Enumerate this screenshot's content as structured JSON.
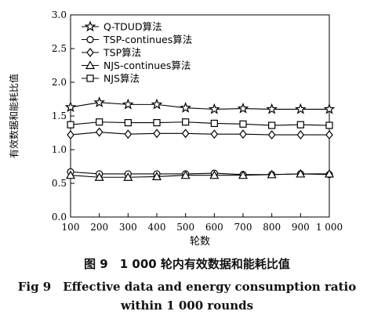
{
  "chart_data": {
    "type": "line",
    "x": [
      100,
      200,
      300,
      400,
      500,
      600,
      700,
      800,
      900,
      1000
    ],
    "xtick_labels": [
      "100",
      "200",
      "300",
      "400",
      "500",
      "600",
      "700",
      "800",
      "900",
      "1 000"
    ],
    "ytick_labels": [
      "0.0",
      "0.5",
      "1.0",
      "1.5",
      "2.0",
      "2.5",
      "3.0"
    ],
    "xlabel": "轮数",
    "ylabel": "有效数据和能耗比值",
    "xlim": [
      100,
      1000
    ],
    "ylim": [
      0,
      3.0
    ],
    "grid": false,
    "legend_position": "top-left",
    "series": [
      {
        "name": "Q-TDUD算法",
        "marker": "star",
        "values": [
          1.63,
          1.7,
          1.67,
          1.67,
          1.62,
          1.6,
          1.61,
          1.6,
          1.6,
          1.6
        ]
      },
      {
        "name": "TSP-continues算法",
        "marker": "circle",
        "values": [
          0.67,
          0.64,
          0.64,
          0.64,
          0.64,
          0.65,
          0.63,
          0.63,
          0.64,
          0.63
        ]
      },
      {
        "name": "TSP算法",
        "marker": "diamond",
        "values": [
          1.22,
          1.26,
          1.23,
          1.24,
          1.24,
          1.23,
          1.23,
          1.22,
          1.22,
          1.22
        ]
      },
      {
        "name": "NJS-continues算法",
        "marker": "triangle",
        "values": [
          0.62,
          0.59,
          0.59,
          0.6,
          0.62,
          0.62,
          0.62,
          0.63,
          0.64,
          0.64
        ]
      },
      {
        "name": "NJS算法",
        "marker": "square",
        "values": [
          1.37,
          1.41,
          1.4,
          1.4,
          1.41,
          1.39,
          1.38,
          1.36,
          1.37,
          1.36
        ]
      }
    ]
  },
  "caption": {
    "cn": "图 9　1 000 轮内有效数据和能耗比值",
    "en_line1": "Fig 9　Effective data and energy consumption ratio",
    "en_line2": "within 1 000 rounds"
  }
}
